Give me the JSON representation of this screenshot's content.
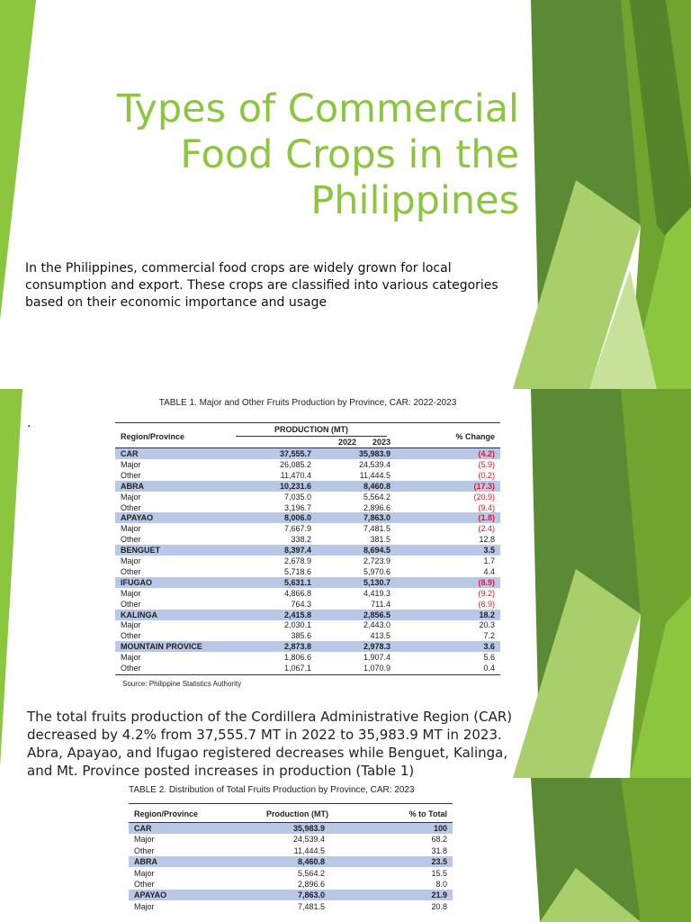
{
  "slide1": {
    "title": "Types of Commercial Food Crops in the Philippines",
    "intro": "In the Philippines, commercial food crops are widely grown for local consumption and export. These crops are classified into various categories based on their economic importance and usage"
  },
  "slide2": {
    "dot": ".",
    "table": {
      "title": "TABLE 1. Major and Other Fruits Production by Province, CAR: 2022-2023",
      "header": {
        "region": "Region/Province",
        "production": "PRODUCTION (MT)",
        "y1": "2022",
        "y2": "2023",
        "change": "% Change"
      },
      "rows": [
        [
          "CAR",
          "37,555.7",
          "35,983.9",
          "(4.2)"
        ],
        [
          "Major",
          "26,085.2",
          "24,539.4",
          "(5.9)"
        ],
        [
          "Other",
          "11,470.4",
          "11,444.5",
          "(0.2)"
        ],
        [
          "ABRA",
          "10,231.6",
          "8,460.8",
          "(17.3)"
        ],
        [
          "Major",
          "7,035.0",
          "5,564.2",
          "(20.9)"
        ],
        [
          "Other",
          "3,196.7",
          "2,896.6",
          "(9.4)"
        ],
        [
          "APAYAO",
          "8,006.0",
          "7,863.0",
          "(1.8)"
        ],
        [
          "Major",
          "7,667.9",
          "7,481.5",
          "(2.4)"
        ],
        [
          "Other",
          "338.2",
          "381.5",
          "12.8"
        ],
        [
          "BENGUET",
          "8,397.4",
          "8,694.5",
          "3.5"
        ],
        [
          "Major",
          "2,678.9",
          "2,723.9",
          "1.7"
        ],
        [
          "Other",
          "5,718.6",
          "5,970.6",
          "4.4"
        ],
        [
          "IFUGAO",
          "5,631.1",
          "5,130.7",
          "(8.9)"
        ],
        [
          "Major",
          "4,866.8",
          "4,419.3",
          "(9.2)"
        ],
        [
          "Other",
          "764.3",
          "711.4",
          "(6.9)"
        ],
        [
          "KALINGA",
          "2,415.8",
          "2,856.5",
          "18.2"
        ],
        [
          "Major",
          "2,030.1",
          "2,443.0",
          "20.3"
        ],
        [
          "Other",
          "385.6",
          "413.5",
          "7.2"
        ],
        [
          "MOUNTAIN PROVICE",
          "2,873.8",
          "2,978.3",
          "3.6"
        ],
        [
          "Major",
          "1,806.6",
          "1,907.4",
          "5.6"
        ],
        [
          "Other",
          "1,067.1",
          "1,070.9",
          "0.4"
        ]
      ],
      "source": "Source: Philippine Statistics Authority"
    },
    "paragraph": "The total fruits production of the Cordillera Administrative Region (CAR) decreased by 4.2% from 37,555.7 MT in 2022 to 35,983.9 MT in 2023. Abra, Apayao, and Ifugao registered decreases while Benguet, Kalinga, and Mt. Province posted increases in production (Table 1)"
  },
  "slide3": {
    "table": {
      "title": "TABLE 2. Distribution of Total Fruits Production by Province, CAR: 2023",
      "header": {
        "region": "Region/Province",
        "production": "Production (MT)",
        "share": "% to Total"
      },
      "rows": [
        [
          "CAR",
          "35,983.9",
          "100"
        ],
        [
          "Major",
          "24,539.4",
          "68.2"
        ],
        [
          "Other",
          "11,444.5",
          "31.8"
        ],
        [
          "ABRA",
          "8,460.8",
          "23.5"
        ],
        [
          "Major",
          "5,564.2",
          "15.5"
        ],
        [
          "Other",
          "2,896.6",
          "8.0"
        ],
        [
          "APAYAO",
          "7,863.0",
          "21.9"
        ],
        [
          "Major",
          "7,481.5",
          "20.8"
        ]
      ]
    }
  }
}
